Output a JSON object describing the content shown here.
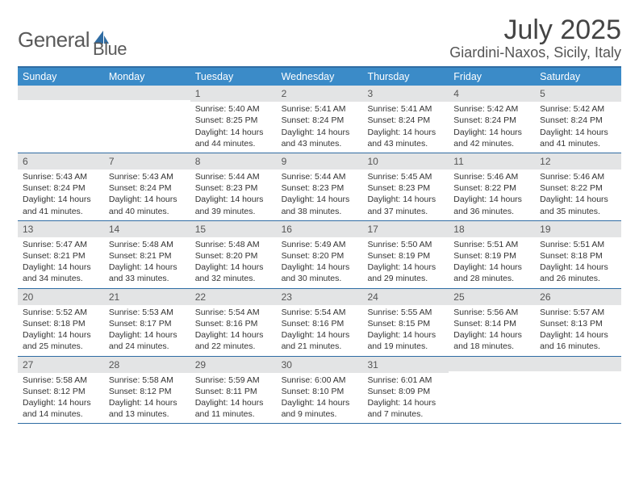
{
  "logo": {
    "text1": "General",
    "text2": "Blue",
    "accent_color": "#2f6ca3"
  },
  "title": "July 2025",
  "location": "Giardini-Naxos, Sicily, Italy",
  "colors": {
    "header_bg": "#3b8bc8",
    "border": "#2f6ca3",
    "daynum_bg": "#e3e4e5",
    "text": "#333333"
  },
  "day_headers": [
    "Sunday",
    "Monday",
    "Tuesday",
    "Wednesday",
    "Thursday",
    "Friday",
    "Saturday"
  ],
  "weeks": [
    [
      {
        "n": "",
        "sr": "",
        "ss": "",
        "dl": ""
      },
      {
        "n": "",
        "sr": "",
        "ss": "",
        "dl": ""
      },
      {
        "n": "1",
        "sr": "Sunrise: 5:40 AM",
        "ss": "Sunset: 8:25 PM",
        "dl": "Daylight: 14 hours and 44 minutes."
      },
      {
        "n": "2",
        "sr": "Sunrise: 5:41 AM",
        "ss": "Sunset: 8:24 PM",
        "dl": "Daylight: 14 hours and 43 minutes."
      },
      {
        "n": "3",
        "sr": "Sunrise: 5:41 AM",
        "ss": "Sunset: 8:24 PM",
        "dl": "Daylight: 14 hours and 43 minutes."
      },
      {
        "n": "4",
        "sr": "Sunrise: 5:42 AM",
        "ss": "Sunset: 8:24 PM",
        "dl": "Daylight: 14 hours and 42 minutes."
      },
      {
        "n": "5",
        "sr": "Sunrise: 5:42 AM",
        "ss": "Sunset: 8:24 PM",
        "dl": "Daylight: 14 hours and 41 minutes."
      }
    ],
    [
      {
        "n": "6",
        "sr": "Sunrise: 5:43 AM",
        "ss": "Sunset: 8:24 PM",
        "dl": "Daylight: 14 hours and 41 minutes."
      },
      {
        "n": "7",
        "sr": "Sunrise: 5:43 AM",
        "ss": "Sunset: 8:24 PM",
        "dl": "Daylight: 14 hours and 40 minutes."
      },
      {
        "n": "8",
        "sr": "Sunrise: 5:44 AM",
        "ss": "Sunset: 8:23 PM",
        "dl": "Daylight: 14 hours and 39 minutes."
      },
      {
        "n": "9",
        "sr": "Sunrise: 5:44 AM",
        "ss": "Sunset: 8:23 PM",
        "dl": "Daylight: 14 hours and 38 minutes."
      },
      {
        "n": "10",
        "sr": "Sunrise: 5:45 AM",
        "ss": "Sunset: 8:23 PM",
        "dl": "Daylight: 14 hours and 37 minutes."
      },
      {
        "n": "11",
        "sr": "Sunrise: 5:46 AM",
        "ss": "Sunset: 8:22 PM",
        "dl": "Daylight: 14 hours and 36 minutes."
      },
      {
        "n": "12",
        "sr": "Sunrise: 5:46 AM",
        "ss": "Sunset: 8:22 PM",
        "dl": "Daylight: 14 hours and 35 minutes."
      }
    ],
    [
      {
        "n": "13",
        "sr": "Sunrise: 5:47 AM",
        "ss": "Sunset: 8:21 PM",
        "dl": "Daylight: 14 hours and 34 minutes."
      },
      {
        "n": "14",
        "sr": "Sunrise: 5:48 AM",
        "ss": "Sunset: 8:21 PM",
        "dl": "Daylight: 14 hours and 33 minutes."
      },
      {
        "n": "15",
        "sr": "Sunrise: 5:48 AM",
        "ss": "Sunset: 8:20 PM",
        "dl": "Daylight: 14 hours and 32 minutes."
      },
      {
        "n": "16",
        "sr": "Sunrise: 5:49 AM",
        "ss": "Sunset: 8:20 PM",
        "dl": "Daylight: 14 hours and 30 minutes."
      },
      {
        "n": "17",
        "sr": "Sunrise: 5:50 AM",
        "ss": "Sunset: 8:19 PM",
        "dl": "Daylight: 14 hours and 29 minutes."
      },
      {
        "n": "18",
        "sr": "Sunrise: 5:51 AM",
        "ss": "Sunset: 8:19 PM",
        "dl": "Daylight: 14 hours and 28 minutes."
      },
      {
        "n": "19",
        "sr": "Sunrise: 5:51 AM",
        "ss": "Sunset: 8:18 PM",
        "dl": "Daylight: 14 hours and 26 minutes."
      }
    ],
    [
      {
        "n": "20",
        "sr": "Sunrise: 5:52 AM",
        "ss": "Sunset: 8:18 PM",
        "dl": "Daylight: 14 hours and 25 minutes."
      },
      {
        "n": "21",
        "sr": "Sunrise: 5:53 AM",
        "ss": "Sunset: 8:17 PM",
        "dl": "Daylight: 14 hours and 24 minutes."
      },
      {
        "n": "22",
        "sr": "Sunrise: 5:54 AM",
        "ss": "Sunset: 8:16 PM",
        "dl": "Daylight: 14 hours and 22 minutes."
      },
      {
        "n": "23",
        "sr": "Sunrise: 5:54 AM",
        "ss": "Sunset: 8:16 PM",
        "dl": "Daylight: 14 hours and 21 minutes."
      },
      {
        "n": "24",
        "sr": "Sunrise: 5:55 AM",
        "ss": "Sunset: 8:15 PM",
        "dl": "Daylight: 14 hours and 19 minutes."
      },
      {
        "n": "25",
        "sr": "Sunrise: 5:56 AM",
        "ss": "Sunset: 8:14 PM",
        "dl": "Daylight: 14 hours and 18 minutes."
      },
      {
        "n": "26",
        "sr": "Sunrise: 5:57 AM",
        "ss": "Sunset: 8:13 PM",
        "dl": "Daylight: 14 hours and 16 minutes."
      }
    ],
    [
      {
        "n": "27",
        "sr": "Sunrise: 5:58 AM",
        "ss": "Sunset: 8:12 PM",
        "dl": "Daylight: 14 hours and 14 minutes."
      },
      {
        "n": "28",
        "sr": "Sunrise: 5:58 AM",
        "ss": "Sunset: 8:12 PM",
        "dl": "Daylight: 14 hours and 13 minutes."
      },
      {
        "n": "29",
        "sr": "Sunrise: 5:59 AM",
        "ss": "Sunset: 8:11 PM",
        "dl": "Daylight: 14 hours and 11 minutes."
      },
      {
        "n": "30",
        "sr": "Sunrise: 6:00 AM",
        "ss": "Sunset: 8:10 PM",
        "dl": "Daylight: 14 hours and 9 minutes."
      },
      {
        "n": "31",
        "sr": "Sunrise: 6:01 AM",
        "ss": "Sunset: 8:09 PM",
        "dl": "Daylight: 14 hours and 7 minutes."
      },
      {
        "n": "",
        "sr": "",
        "ss": "",
        "dl": ""
      },
      {
        "n": "",
        "sr": "",
        "ss": "",
        "dl": ""
      }
    ]
  ]
}
